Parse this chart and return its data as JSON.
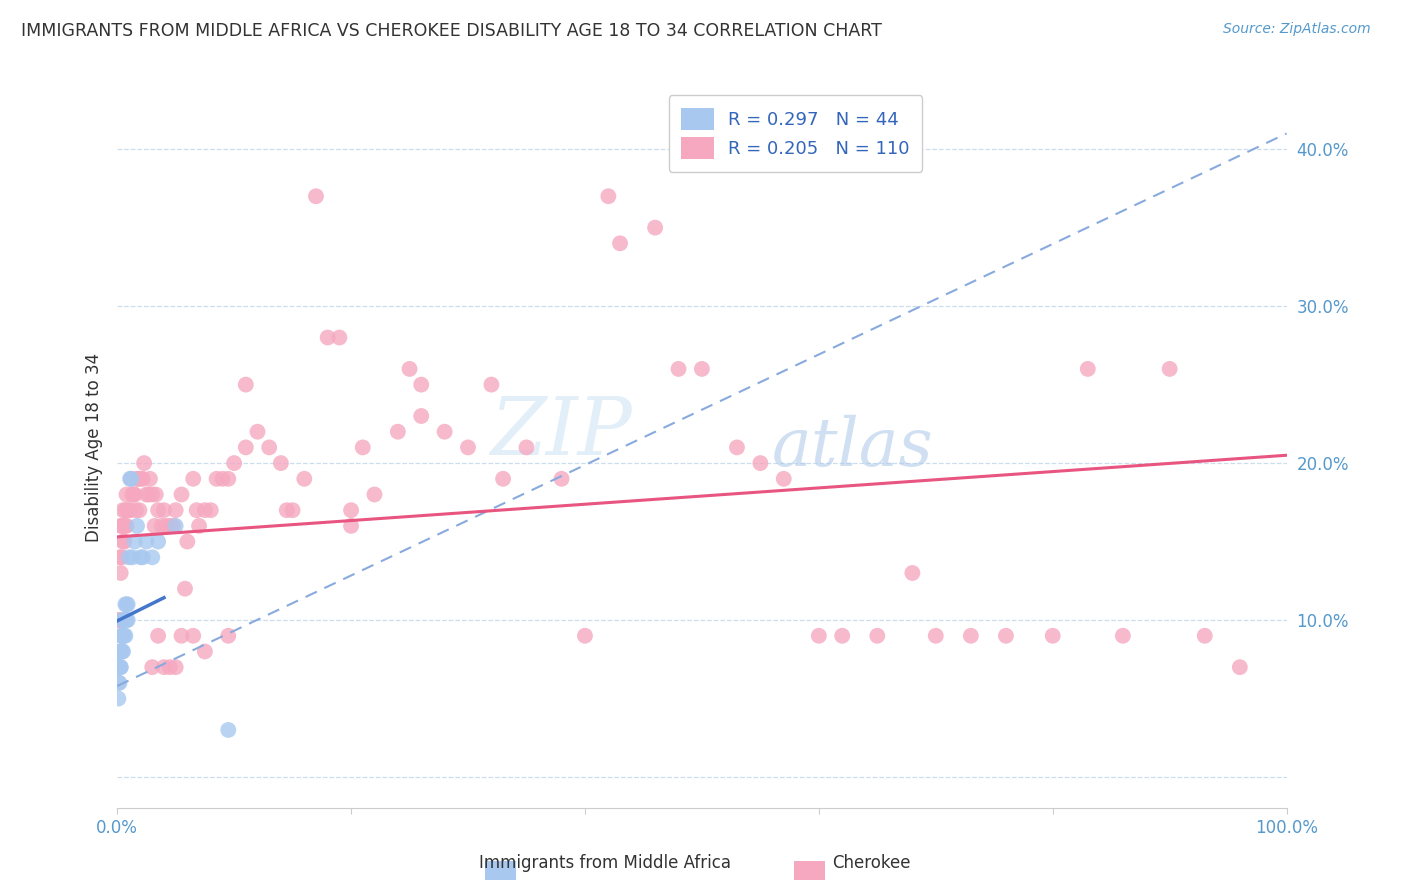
{
  "title": "IMMIGRANTS FROM MIDDLE AFRICA VS CHEROKEE DISABILITY AGE 18 TO 34 CORRELATION CHART",
  "source": "Source: ZipAtlas.com",
  "ylabel": "Disability Age 18 to 34",
  "xlim": [
    0,
    1.0
  ],
  "ylim": [
    -0.02,
    0.44
  ],
  "legend_R1": "0.297",
  "legend_N1": "44",
  "legend_R2": "0.205",
  "legend_N2": "110",
  "legend_label1": "Immigrants from Middle Africa",
  "legend_label2": "Cherokee",
  "blue_color": "#a8c8f0",
  "pink_color": "#f5a8c0",
  "blue_line_color": "#4477cc",
  "pink_line_color": "#e85580",
  "blue_dashed_color": "#88aadd",
  "watermark_color": "#c8daf0",
  "blue_scatter_x": [
    0.001,
    0.001,
    0.001,
    0.002,
    0.002,
    0.002,
    0.002,
    0.003,
    0.003,
    0.003,
    0.003,
    0.004,
    0.004,
    0.004,
    0.004,
    0.005,
    0.005,
    0.005,
    0.005,
    0.005,
    0.006,
    0.006,
    0.006,
    0.007,
    0.007,
    0.007,
    0.007,
    0.008,
    0.008,
    0.009,
    0.009,
    0.01,
    0.011,
    0.012,
    0.013,
    0.015,
    0.017,
    0.02,
    0.022,
    0.025,
    0.03,
    0.035,
    0.05,
    0.095
  ],
  "blue_scatter_y": [
    0.05,
    0.06,
    0.07,
    0.06,
    0.07,
    0.08,
    0.07,
    0.07,
    0.08,
    0.09,
    0.07,
    0.08,
    0.09,
    0.09,
    0.08,
    0.09,
    0.1,
    0.1,
    0.09,
    0.08,
    0.1,
    0.09,
    0.1,
    0.09,
    0.1,
    0.11,
    0.1,
    0.11,
    0.1,
    0.11,
    0.1,
    0.14,
    0.19,
    0.19,
    0.14,
    0.15,
    0.16,
    0.14,
    0.14,
    0.15,
    0.14,
    0.15,
    0.16,
    0.03
  ],
  "pink_scatter_x": [
    0.001,
    0.002,
    0.002,
    0.003,
    0.003,
    0.004,
    0.004,
    0.005,
    0.005,
    0.005,
    0.006,
    0.007,
    0.007,
    0.008,
    0.008,
    0.009,
    0.01,
    0.011,
    0.012,
    0.013,
    0.014,
    0.015,
    0.016,
    0.017,
    0.018,
    0.019,
    0.02,
    0.022,
    0.023,
    0.025,
    0.027,
    0.028,
    0.03,
    0.032,
    0.033,
    0.035,
    0.038,
    0.04,
    0.042,
    0.045,
    0.048,
    0.05,
    0.055,
    0.058,
    0.06,
    0.065,
    0.068,
    0.07,
    0.075,
    0.08,
    0.085,
    0.09,
    0.095,
    0.1,
    0.11,
    0.12,
    0.13,
    0.14,
    0.15,
    0.16,
    0.17,
    0.18,
    0.19,
    0.2,
    0.21,
    0.22,
    0.24,
    0.25,
    0.26,
    0.28,
    0.3,
    0.32,
    0.35,
    0.38,
    0.4,
    0.43,
    0.46,
    0.48,
    0.5,
    0.53,
    0.55,
    0.57,
    0.6,
    0.62,
    0.65,
    0.68,
    0.7,
    0.73,
    0.76,
    0.8,
    0.83,
    0.86,
    0.9,
    0.93,
    0.96,
    0.03,
    0.035,
    0.04,
    0.045,
    0.05,
    0.055,
    0.065,
    0.075,
    0.095,
    0.11,
    0.145,
    0.2,
    0.26,
    0.33,
    0.42
  ],
  "pink_scatter_y": [
    0.1,
    0.1,
    0.14,
    0.13,
    0.16,
    0.14,
    0.16,
    0.15,
    0.16,
    0.17,
    0.15,
    0.17,
    0.16,
    0.18,
    0.16,
    0.17,
    0.17,
    0.17,
    0.19,
    0.18,
    0.18,
    0.18,
    0.17,
    0.19,
    0.19,
    0.17,
    0.19,
    0.19,
    0.2,
    0.18,
    0.18,
    0.19,
    0.18,
    0.16,
    0.18,
    0.17,
    0.16,
    0.17,
    0.16,
    0.16,
    0.16,
    0.17,
    0.18,
    0.12,
    0.15,
    0.19,
    0.17,
    0.16,
    0.17,
    0.17,
    0.19,
    0.19,
    0.19,
    0.2,
    0.21,
    0.22,
    0.21,
    0.2,
    0.17,
    0.19,
    0.37,
    0.28,
    0.28,
    0.17,
    0.21,
    0.18,
    0.22,
    0.26,
    0.23,
    0.22,
    0.21,
    0.25,
    0.21,
    0.19,
    0.09,
    0.34,
    0.35,
    0.26,
    0.26,
    0.21,
    0.2,
    0.19,
    0.09,
    0.09,
    0.09,
    0.13,
    0.09,
    0.09,
    0.09,
    0.09,
    0.26,
    0.09,
    0.26,
    0.09,
    0.07,
    0.07,
    0.09,
    0.07,
    0.07,
    0.07,
    0.09,
    0.09,
    0.08,
    0.09,
    0.25,
    0.17,
    0.16,
    0.25,
    0.19,
    0.37
  ],
  "blue_line_x0": 0.0,
  "blue_line_y0": 0.058,
  "blue_line_x1": 1.0,
  "blue_line_y1": 0.41,
  "pink_line_x0": 0.0,
  "pink_line_y0": 0.153,
  "pink_line_x1": 1.0,
  "pink_line_y1": 0.205
}
